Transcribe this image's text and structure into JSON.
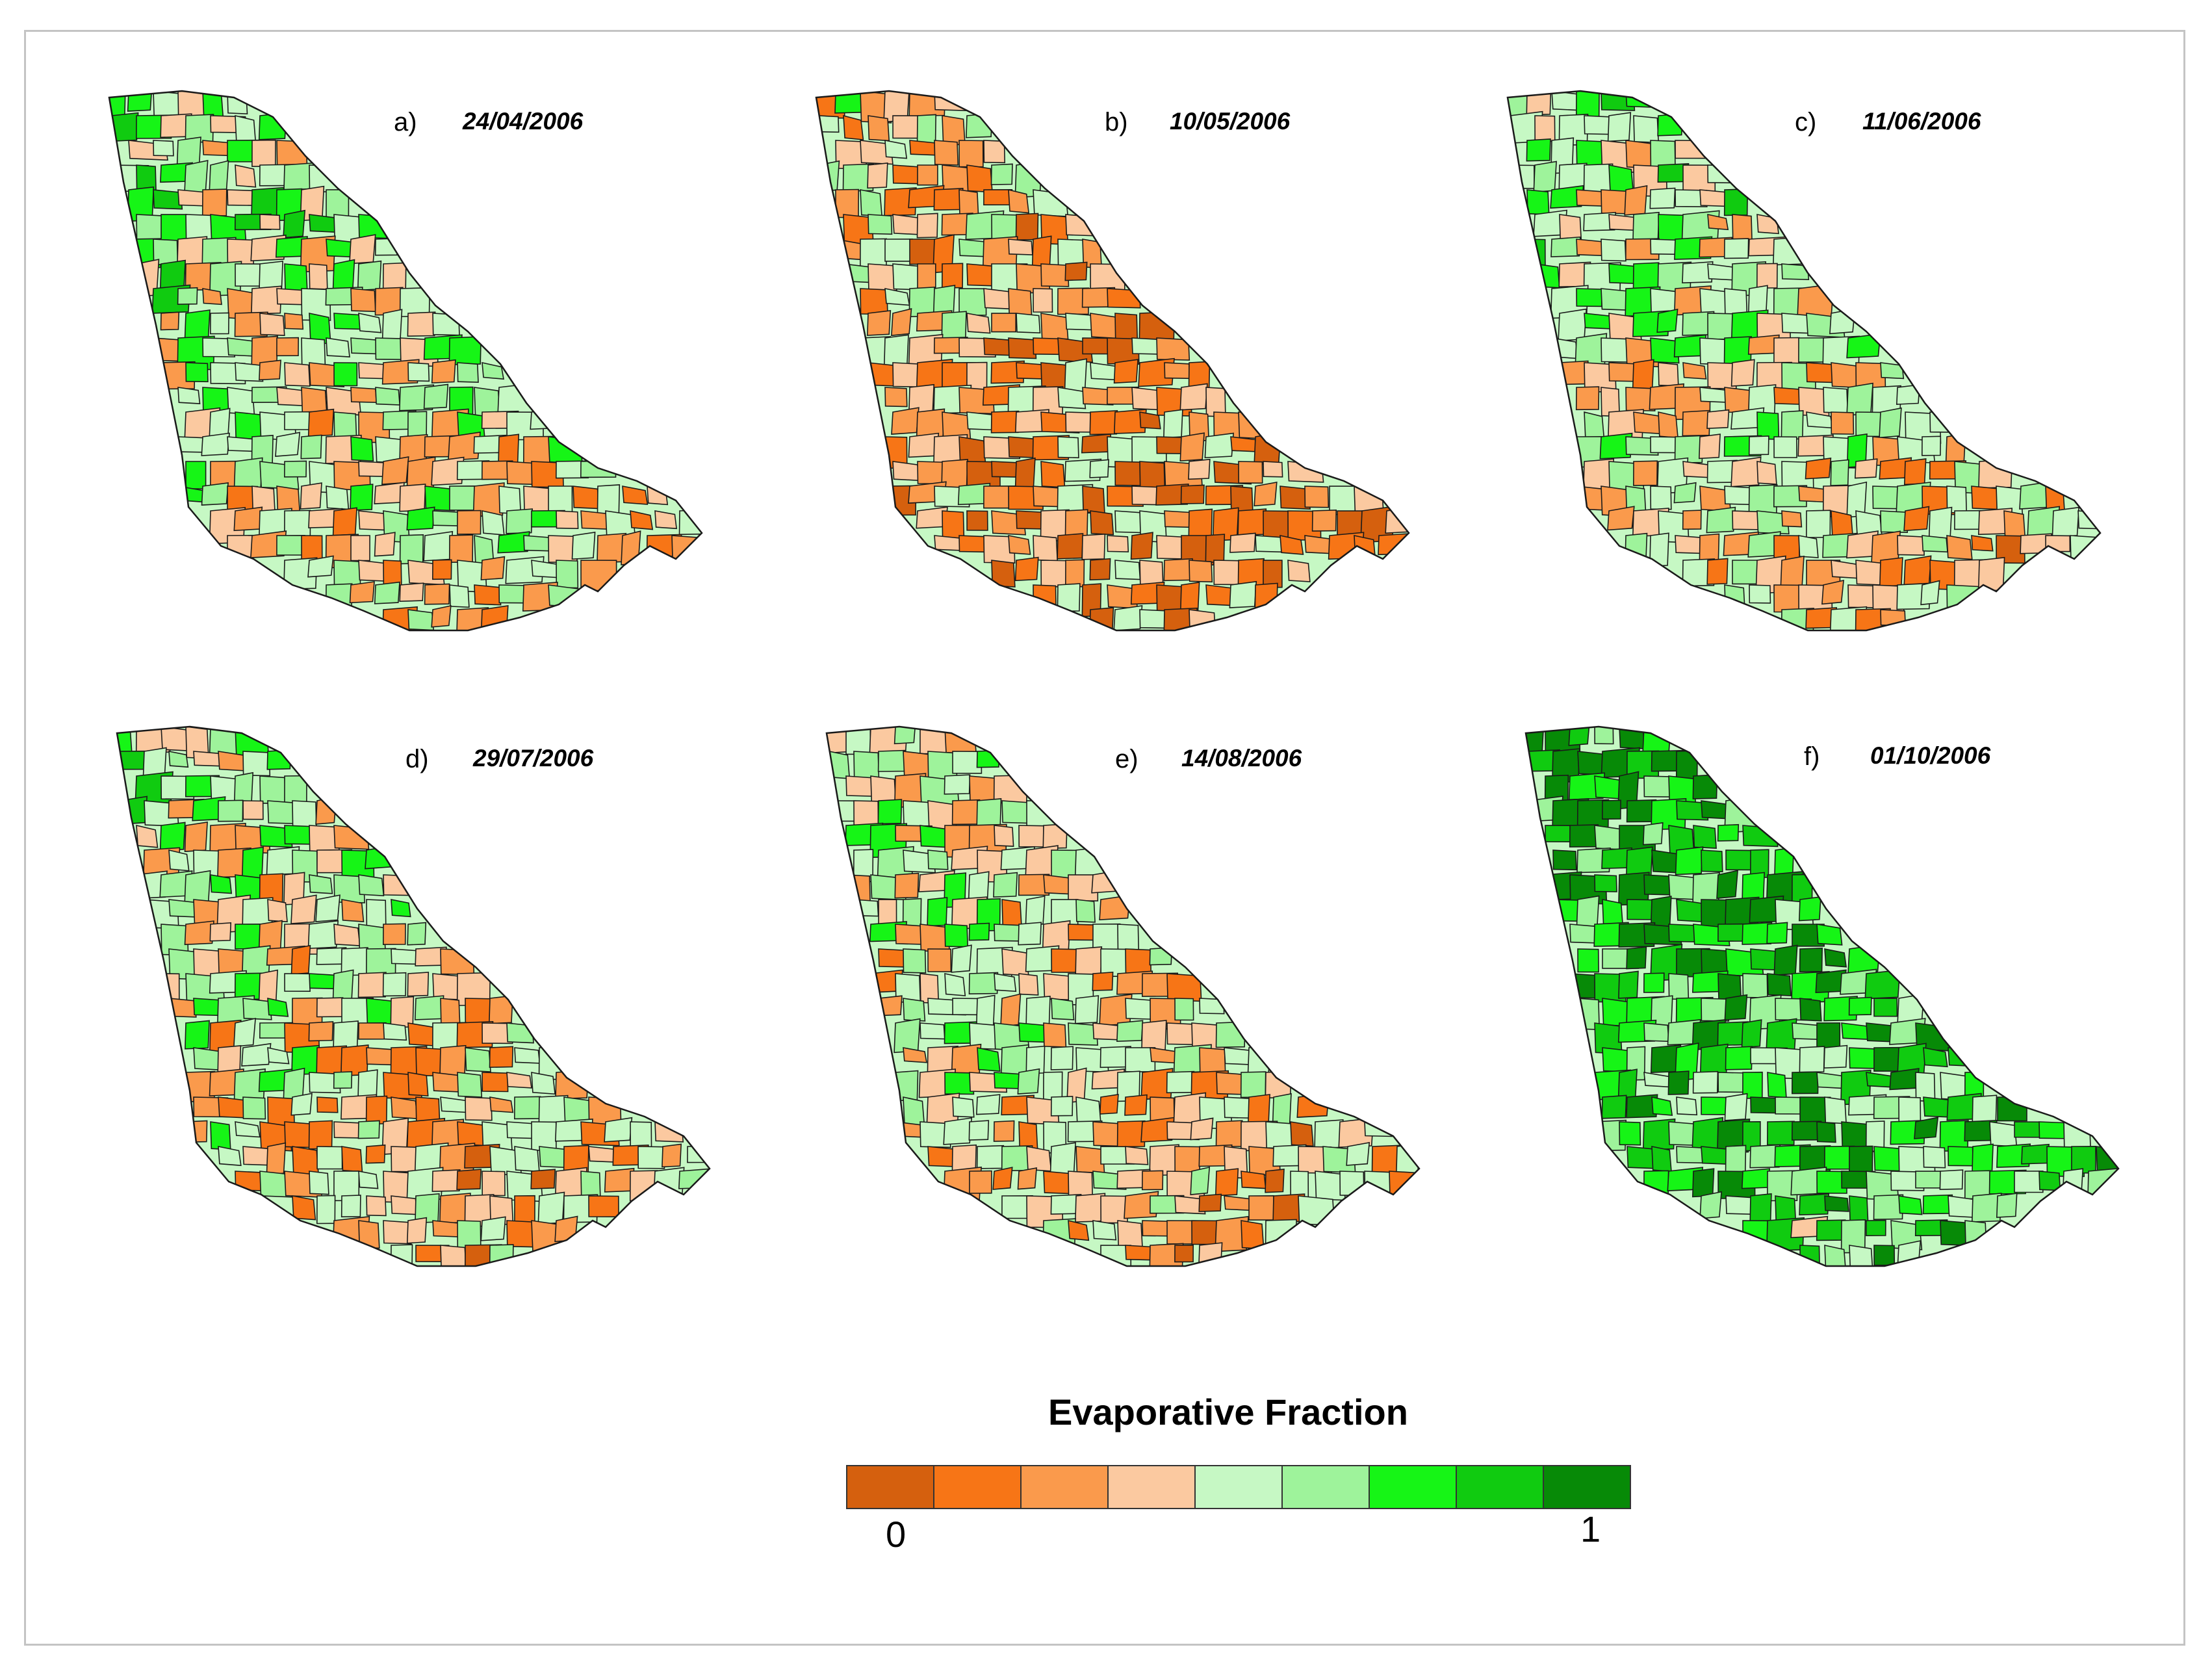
{
  "panels": [
    {
      "letter": "a)",
      "date": "24/04/2006",
      "ef_mean": 0.48
    },
    {
      "letter": "b)",
      "date": "10/05/2006",
      "ef_mean": 0.3
    },
    {
      "letter": "c)",
      "date": "11/06/2006",
      "ef_mean": 0.45
    },
    {
      "letter": "d)",
      "date": "29/07/2006",
      "ef_mean": 0.42
    },
    {
      "letter": "e)",
      "date": "14/08/2006",
      "ef_mean": 0.42
    },
    {
      "letter": "f)",
      "date": "01/10/2006",
      "ef_mean": 0.72
    }
  ],
  "legend": {
    "title": "Evaporative Fraction",
    "min_label": "0",
    "max_label": "1",
    "colors": [
      "#d5600e",
      "#f77516",
      "#fa9a4c",
      "#fbc9a0",
      "#c6f8c4",
      "#9ef39b",
      "#16f516",
      "#10cb10",
      "#078a07"
    ]
  },
  "boundary_color": "#1a1a1a"
}
